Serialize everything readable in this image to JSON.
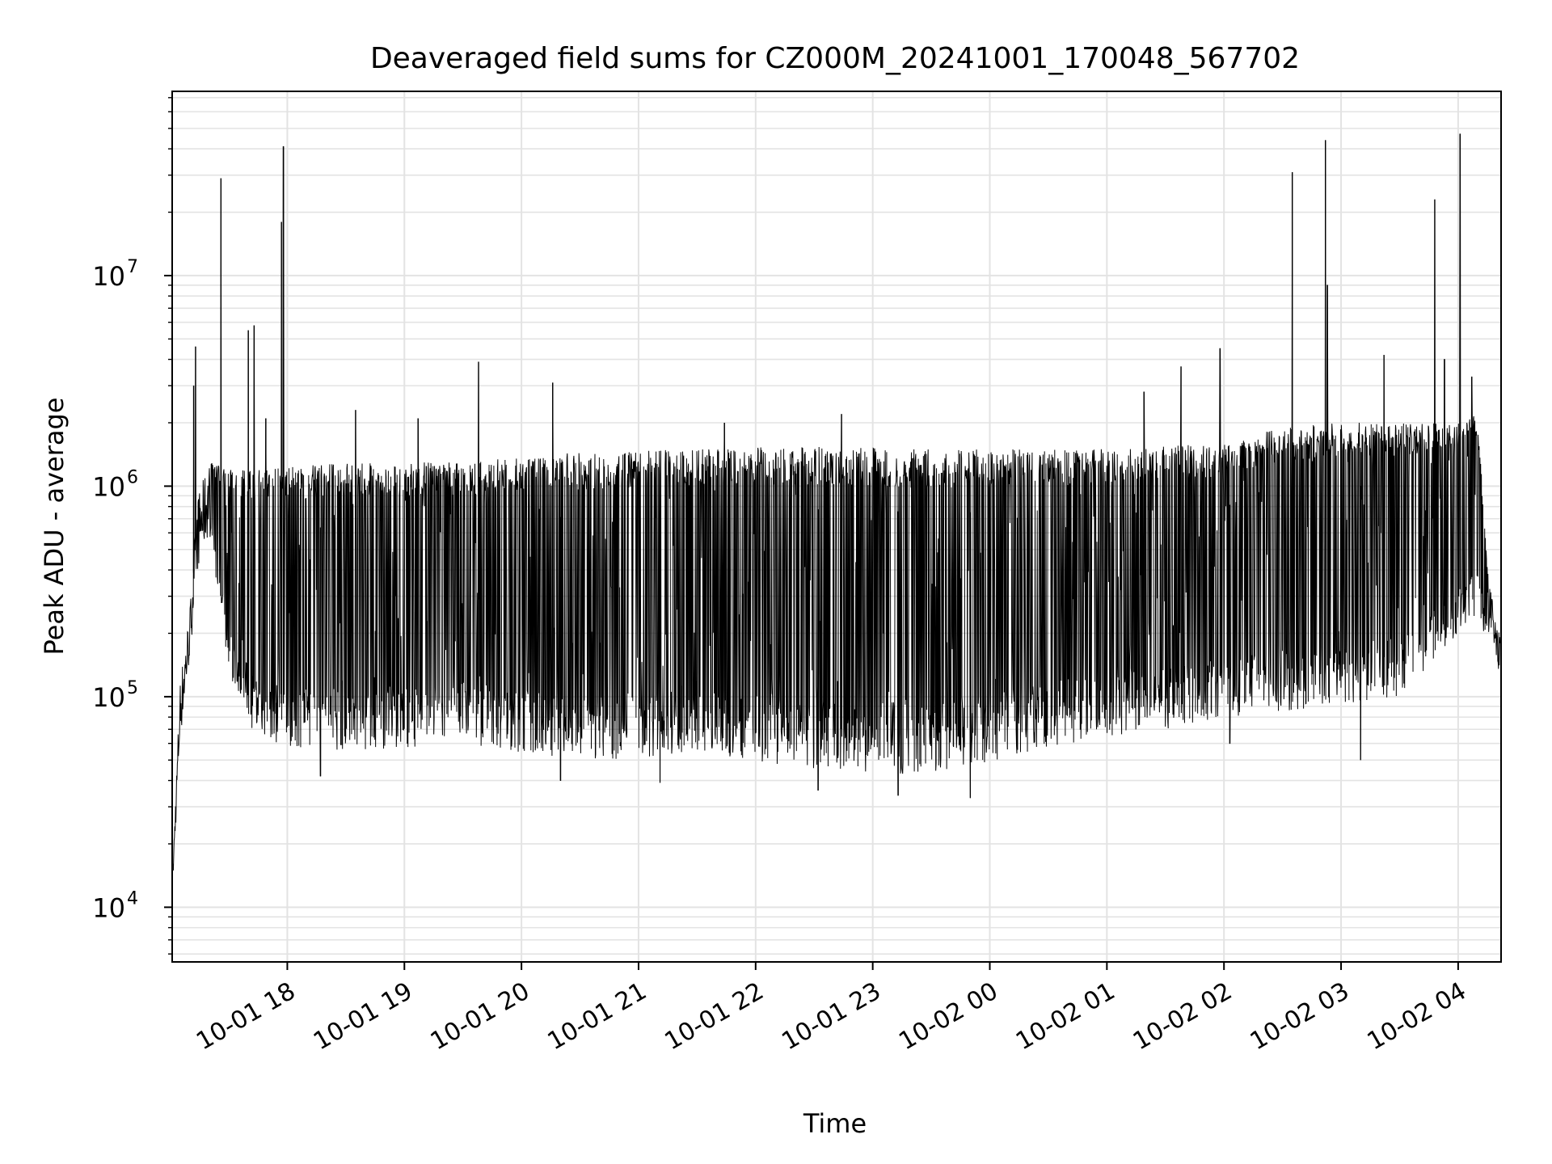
{
  "chart_data": {
    "type": "line",
    "title": "Deaveraged field sums for CZ000M_20241001_170048_567702",
    "xlabel": "Time",
    "ylabel": "Peak ADU - average",
    "xlim": [
      "2024-10-01 17:01",
      "2024-10-02 04:22"
    ],
    "ylim": [
      5500,
      75000000
    ],
    "yscale": "log",
    "grid": true,
    "line_color": "#000000",
    "x_ticks": [
      {
        "value": "2024-10-01 18:00",
        "label": "10-01 18"
      },
      {
        "value": "2024-10-01 19:00",
        "label": "10-01 19"
      },
      {
        "value": "2024-10-01 20:00",
        "label": "10-01 20"
      },
      {
        "value": "2024-10-01 21:00",
        "label": "10-01 21"
      },
      {
        "value": "2024-10-01 22:00",
        "label": "10-01 22"
      },
      {
        "value": "2024-10-01 23:00",
        "label": "10-01 23"
      },
      {
        "value": "2024-10-02 00:00",
        "label": "10-02 00"
      },
      {
        "value": "2024-10-02 01:00",
        "label": "10-02 01"
      },
      {
        "value": "2024-10-02 02:00",
        "label": "10-02 02"
      },
      {
        "value": "2024-10-02 03:00",
        "label": "10-02 03"
      },
      {
        "value": "2024-10-02 04:00",
        "label": "10-02 04"
      }
    ],
    "y_ticks": [
      {
        "value": 10000,
        "base": "10",
        "exp": "4"
      },
      {
        "value": 100000,
        "base": "10",
        "exp": "5"
      },
      {
        "value": 1000000,
        "base": "10",
        "exp": "6"
      },
      {
        "value": 10000000,
        "base": "10",
        "exp": "7"
      }
    ],
    "envelope": [
      {
        "t": "2024-10-01 17:01",
        "low": 11000,
        "high": 13000
      },
      {
        "t": "2024-10-01 17:05",
        "low": 60000,
        "high": 120000
      },
      {
        "t": "2024-10-01 17:10",
        "low": 150000,
        "high": 260000
      },
      {
        "t": "2024-10-01 17:14",
        "low": 400000,
        "high": 900000
      },
      {
        "t": "2024-10-01 17:20",
        "low": 600000,
        "high": 1300000
      },
      {
        "t": "2024-10-01 17:30",
        "low": 130000,
        "high": 1200000
      },
      {
        "t": "2024-10-01 17:45",
        "low": 60000,
        "high": 1200000
      },
      {
        "t": "2024-10-01 18:30",
        "low": 55000,
        "high": 1300000
      },
      {
        "t": "2024-10-01 19:30",
        "low": 60000,
        "high": 1300000
      },
      {
        "t": "2024-10-01 20:30",
        "low": 48000,
        "high": 1450000
      },
      {
        "t": "2024-10-01 21:30",
        "low": 55000,
        "high": 1500000
      },
      {
        "t": "2024-10-01 22:30",
        "low": 45000,
        "high": 1550000
      },
      {
        "t": "2024-10-01 23:30",
        "low": 42000,
        "high": 1500000
      },
      {
        "t": "2024-10-02 00:30",
        "low": 58000,
        "high": 1500000
      },
      {
        "t": "2024-10-02 01:30",
        "low": 70000,
        "high": 1550000
      },
      {
        "t": "2024-10-02 02:00",
        "low": 80000,
        "high": 1600000
      },
      {
        "t": "2024-10-02 02:30",
        "low": 85000,
        "high": 1900000
      },
      {
        "t": "2024-10-02 03:00",
        "low": 90000,
        "high": 2000000
      },
      {
        "t": "2024-10-02 03:30",
        "low": 100000,
        "high": 2000000
      },
      {
        "t": "2024-10-02 04:00",
        "low": 200000,
        "high": 2000000
      },
      {
        "t": "2024-10-02 04:10",
        "low": 250000,
        "high": 2200000
      },
      {
        "t": "2024-10-02 04:15",
        "low": 180000,
        "high": 400000
      },
      {
        "t": "2024-10-02 04:22",
        "low": 120000,
        "high": 180000
      }
    ],
    "spikes": [
      {
        "t": "2024-10-01 17:13",
        "value": 4600000
      },
      {
        "t": "2024-10-01 17:12",
        "value": 3000000
      },
      {
        "t": "2024-10-01 17:26",
        "value": 29000000
      },
      {
        "t": "2024-10-01 17:40",
        "value": 5500000
      },
      {
        "t": "2024-10-01 17:43",
        "value": 5800000
      },
      {
        "t": "2024-10-01 17:49",
        "value": 2100000
      },
      {
        "t": "2024-10-01 17:57",
        "value": 18000000
      },
      {
        "t": "2024-10-01 17:58",
        "value": 41000000
      },
      {
        "t": "2024-10-01 18:35",
        "value": 2300000
      },
      {
        "t": "2024-10-01 19:07",
        "value": 2100000
      },
      {
        "t": "2024-10-01 19:38",
        "value": 3900000
      },
      {
        "t": "2024-10-01 20:16",
        "value": 3100000
      },
      {
        "t": "2024-10-01 21:44",
        "value": 2000000
      },
      {
        "t": "2024-10-01 22:44",
        "value": 2200000
      },
      {
        "t": "2024-10-02 01:19",
        "value": 2800000
      },
      {
        "t": "2024-10-02 01:38",
        "value": 3700000
      },
      {
        "t": "2024-10-02 01:58",
        "value": 4500000
      },
      {
        "t": "2024-10-02 02:35",
        "value": 31000000
      },
      {
        "t": "2024-10-02 02:52",
        "value": 44000000
      },
      {
        "t": "2024-10-02 02:53",
        "value": 9000000
      },
      {
        "t": "2024-10-02 03:22",
        "value": 4200000
      },
      {
        "t": "2024-10-02 03:48",
        "value": 23000000
      },
      {
        "t": "2024-10-02 03:53",
        "value": 4000000
      },
      {
        "t": "2024-10-02 04:01",
        "value": 47000000
      },
      {
        "t": "2024-10-02 04:07",
        "value": 3300000
      }
    ],
    "dips": [
      {
        "t": "2024-10-01 18:17",
        "value": 42000
      },
      {
        "t": "2024-10-01 20:20",
        "value": 40000
      },
      {
        "t": "2024-10-01 21:11",
        "value": 39000
      },
      {
        "t": "2024-10-01 22:32",
        "value": 36000
      },
      {
        "t": "2024-10-01 23:13",
        "value": 34000
      },
      {
        "t": "2024-10-01 23:50",
        "value": 33000
      },
      {
        "t": "2024-10-02 02:03",
        "value": 60000
      },
      {
        "t": "2024-10-02 03:10",
        "value": 50000
      }
    ]
  }
}
